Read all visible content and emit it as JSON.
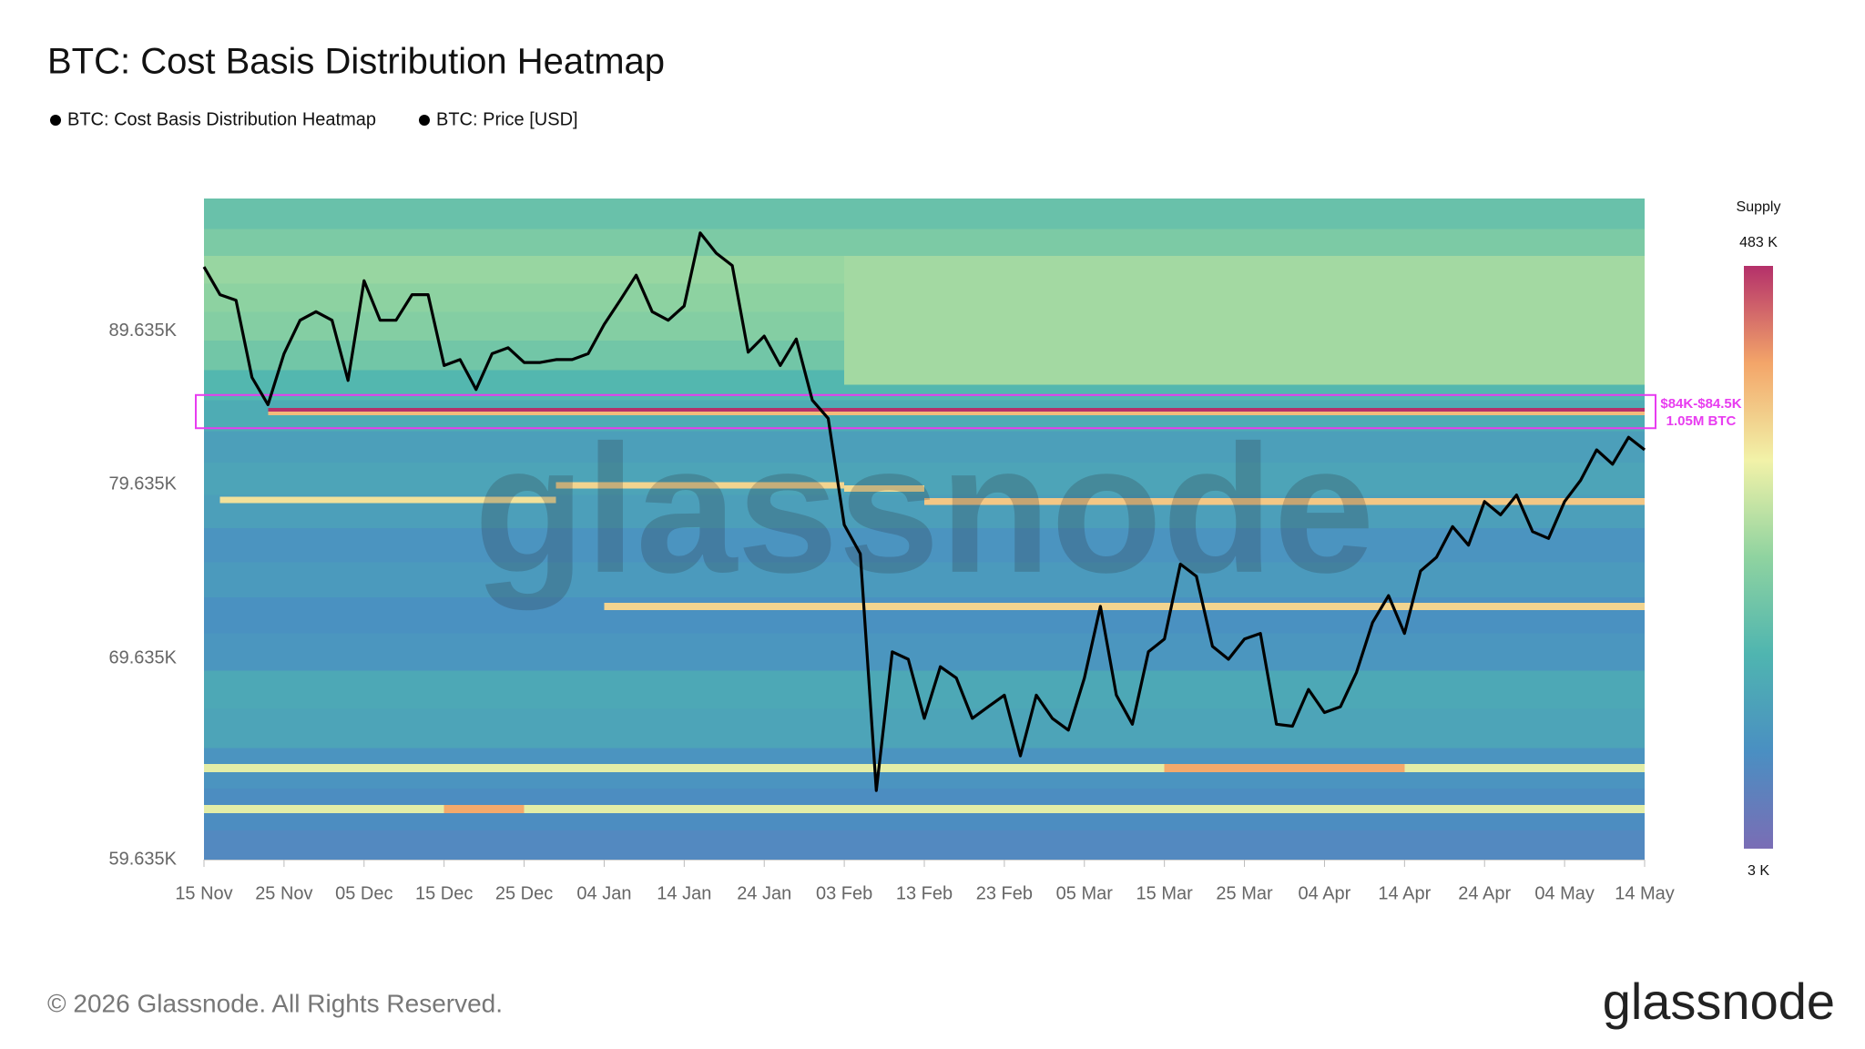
{
  "chart_data": {
    "type": "heatmap",
    "title": "BTC: Cost Basis Distribution Heatmap",
    "watermark": "glassnode",
    "footer": "© 2026 Glassnode. All Rights Reserved.",
    "logo": "glassnode",
    "log_scale": true,
    "ylim": [
      59635,
      99300
    ],
    "yticks": [
      {
        "value": 59635,
        "label": "59.635K"
      },
      {
        "value": 69635,
        "label": "69.635K"
      },
      {
        "value": 79635,
        "label": "79.635K"
      },
      {
        "value": 89635,
        "label": "89.635K"
      }
    ],
    "x": [
      "15 Nov",
      "17 Nov",
      "19 Nov",
      "21 Nov",
      "23 Nov",
      "25 Nov",
      "27 Nov",
      "29 Nov",
      "01 Dec",
      "03 Dec",
      "05 Dec",
      "07 Dec",
      "09 Dec",
      "11 Dec",
      "13 Dec",
      "15 Dec",
      "17 Dec",
      "19 Dec",
      "21 Dec",
      "23 Dec",
      "25 Dec",
      "27 Dec",
      "29 Dec",
      "31 Dec",
      "02 Jan",
      "04 Jan",
      "06 Jan",
      "08 Jan",
      "10 Jan",
      "12 Jan",
      "14 Jan",
      "16 Jan",
      "18 Jan",
      "20 Jan",
      "22 Jan",
      "24 Jan",
      "26 Jan",
      "28 Jan",
      "30 Jan",
      "01 Feb",
      "03 Feb",
      "05 Feb",
      "07 Feb",
      "09 Feb",
      "11 Feb",
      "13 Feb",
      "15 Feb",
      "17 Feb",
      "19 Feb",
      "21 Feb",
      "23 Feb",
      "25 Feb",
      "27 Feb",
      "01 Mar",
      "03 Mar",
      "05 Mar",
      "07 Mar",
      "09 Mar",
      "11 Mar",
      "13 Mar",
      "15 Mar",
      "17 Mar",
      "19 Mar",
      "21 Mar",
      "23 Mar",
      "25 Mar",
      "27 Mar",
      "29 Mar",
      "31 Mar",
      "02 Apr",
      "04 Apr",
      "06 Apr",
      "08 Apr",
      "10 Apr",
      "12 Apr",
      "14 Apr",
      "16 Apr",
      "18 Apr",
      "20 Apr",
      "22 Apr",
      "24 Apr",
      "26 Apr",
      "28 Apr",
      "30 Apr",
      "02 May",
      "04 May",
      "06 May",
      "08 May",
      "10 May",
      "12 May",
      "14 May"
    ],
    "xticks": [
      "15 Nov",
      "25 Nov",
      "05 Dec",
      "15 Dec",
      "25 Dec",
      "04 Jan",
      "14 Jan",
      "24 Jan",
      "03 Feb",
      "13 Feb",
      "23 Feb",
      "05 Mar",
      "15 Mar",
      "25 Mar",
      "04 Apr",
      "14 Apr",
      "24 Apr",
      "04 May",
      "14 May"
    ],
    "series": [
      {
        "name": "BTC: Cost Basis Distribution Heatmap",
        "type": "heatmap",
        "zlim": [
          3000,
          483000
        ],
        "colors": [
          "#7a6db5",
          "#4a8fc2",
          "#4fb5b0",
          "#8fd3a0",
          "#f2f2a8",
          "#f3a569",
          "#b4306a"
        ],
        "colorbar": {
          "title": "Supply",
          "ticks": [
            {
              "value": 483000,
              "label": "483 K"
            },
            {
              "value": 3000,
              "label": "3 K"
            }
          ]
        },
        "cells": [
          {
            "start": "15 Nov",
            "end": "14 May",
            "low": 59635,
            "high": 61000,
            "supply": 12000
          },
          {
            "start": "15 Nov",
            "end": "14 May",
            "low": 61000,
            "high": 63000,
            "supply": 15000
          },
          {
            "start": "15 Nov",
            "end": "14 May",
            "low": 63000,
            "high": 65000,
            "supply": 20000
          },
          {
            "start": "15 Nov",
            "end": "14 May",
            "low": 65000,
            "high": 67000,
            "supply": 35000
          },
          {
            "start": "15 Nov",
            "end": "14 May",
            "low": 67000,
            "high": 69000,
            "supply": 40000
          },
          {
            "start": "15 Nov",
            "end": "14 May",
            "low": 69000,
            "high": 71000,
            "supply": 22000
          },
          {
            "start": "15 Nov",
            "end": "14 May",
            "low": 71000,
            "high": 73000,
            "supply": 18000
          },
          {
            "start": "15 Nov",
            "end": "14 May",
            "low": 73000,
            "high": 75000,
            "supply": 25000
          },
          {
            "start": "15 Nov",
            "end": "14 May",
            "low": 75000,
            "high": 77000,
            "supply": 20000
          },
          {
            "start": "15 Nov",
            "end": "14 May",
            "low": 77000,
            "high": 79000,
            "supply": 30000
          },
          {
            "start": "15 Nov",
            "end": "14 May",
            "low": 79000,
            "high": 81000,
            "supply": 35000
          },
          {
            "start": "15 Nov",
            "end": "14 May",
            "low": 81000,
            "high": 83000,
            "supply": 30000
          },
          {
            "start": "15 Nov",
            "end": "14 May",
            "low": 83000,
            "high": 85000,
            "supply": 45000
          },
          {
            "start": "15 Nov",
            "end": "14 May",
            "low": 85000,
            "high": 87000,
            "supply": 60000
          },
          {
            "start": "15 Nov",
            "end": "14 May",
            "low": 87000,
            "high": 89000,
            "supply": 90000
          },
          {
            "start": "15 Nov",
            "end": "14 May",
            "low": 89000,
            "high": 91000,
            "supply": 110000
          },
          {
            "start": "15 Nov",
            "end": "14 May",
            "low": 91000,
            "high": 93000,
            "supply": 120000
          },
          {
            "start": "15 Nov",
            "end": "14 May",
            "low": 93000,
            "high": 95000,
            "supply": 130000
          },
          {
            "start": "15 Nov",
            "end": "14 May",
            "low": 95000,
            "high": 97000,
            "supply": 100000
          },
          {
            "start": "15 Nov",
            "end": "14 May",
            "low": 97000,
            "high": 99300,
            "supply": 80000
          },
          {
            "start": "03 Feb",
            "end": "14 May",
            "low": 86000,
            "high": 95000,
            "supply": 140000
          },
          {
            "start": "23 Nov",
            "end": "14 May",
            "low": 84000,
            "high": 84250,
            "supply": 300000
          },
          {
            "start": "23 Nov",
            "end": "14 May",
            "low": 84250,
            "high": 84500,
            "supply": 483000
          },
          {
            "start": "17 Nov",
            "end": "29 Dec",
            "low": 78500,
            "high": 78900,
            "supply": 240000
          },
          {
            "start": "29 Dec",
            "end": "03 Feb",
            "low": 79400,
            "high": 79800,
            "supply": 260000
          },
          {
            "start": "03 Feb",
            "end": "13 Feb",
            "low": 79200,
            "high": 79600,
            "supply": 250000
          },
          {
            "start": "13 Feb",
            "end": "14 May",
            "low": 78400,
            "high": 78800,
            "supply": 280000
          },
          {
            "start": "04 Jan",
            "end": "14 May",
            "low": 72300,
            "high": 72700,
            "supply": 260000
          },
          {
            "start": "15 Nov",
            "end": "14 May",
            "low": 63800,
            "high": 64200,
            "supply": 200000
          },
          {
            "start": "15 Mar",
            "end": "14 Apr",
            "low": 63800,
            "high": 64200,
            "supply": 330000
          },
          {
            "start": "15 Nov",
            "end": "14 May",
            "low": 61800,
            "high": 62200,
            "supply": 200000
          },
          {
            "start": "15 Dec",
            "end": "25 Dec",
            "low": 61800,
            "high": 62200,
            "supply": 330000
          }
        ]
      },
      {
        "name": "BTC: Price [USD]",
        "type": "line",
        "color": "#000000",
        "values": [
          94200,
          92200,
          91800,
          86500,
          84700,
          88100,
          90400,
          91000,
          90400,
          86300,
          93200,
          90400,
          90400,
          92200,
          92200,
          87300,
          87700,
          85700,
          88100,
          88500,
          87500,
          87500,
          87700,
          87700,
          88100,
          90100,
          91800,
          93600,
          91000,
          90400,
          91400,
          96700,
          95200,
          94300,
          88200,
          89300,
          87300,
          89100,
          85000,
          83800,
          77200,
          75500,
          62900,
          70000,
          69600,
          66500,
          69200,
          68600,
          66500,
          67100,
          67700,
          64600,
          67700,
          66500,
          65900,
          68600,
          72500,
          67700,
          66200,
          70000,
          70700,
          74900,
          74200,
          70300,
          69600,
          70700,
          71000,
          66200,
          66100,
          68000,
          66800,
          67100,
          68900,
          71600,
          73100,
          71000,
          74500,
          75300,
          77100,
          76000,
          78600,
          77800,
          79000,
          76800,
          76400,
          78600,
          79900,
          81800,
          80900,
          82600,
          81800
        ]
      }
    ],
    "annotation": {
      "lines": [
        "$84K-$84.5K",
        "1.05M BTC"
      ],
      "color": "#e83cf0",
      "low": 84000,
      "high": 84500
    }
  }
}
